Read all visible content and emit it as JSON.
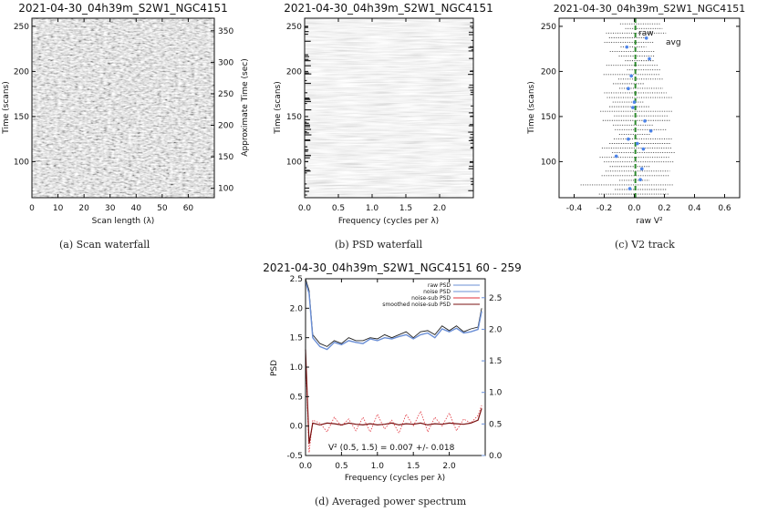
{
  "colors": {
    "axis": "#111111",
    "raw_psd": "#222222",
    "noise_psd": "#6b8fd6",
    "noise_sub": "#e0303a",
    "smoothed": "#7a1010",
    "avg_point": "#4d84e8",
    "v2_line": "#2e8b2e",
    "right_axis": "#6b8fd6"
  },
  "captions": {
    "a": "(a) Scan waterfall",
    "b": "(b) PSD waterfall",
    "c": "(c) V2 track",
    "d": "(d) Averaged power spectrum"
  },
  "chart_data": [
    {
      "id": "a",
      "type": "heatmap",
      "title": "2021-04-30_04h39m_S2W1_NGC4151",
      "xlabel": "Scan length (λ)",
      "ylabel": "Time (scans)",
      "y2label": "Approximate Time (sec)",
      "xlim": [
        0,
        70
      ],
      "ylim": [
        60,
        259
      ],
      "y2lim": [
        85,
        370
      ],
      "xticks": [
        "0",
        "10",
        "20",
        "30",
        "40",
        "50",
        "60"
      ],
      "yticks": [
        "100",
        "150",
        "200",
        "250"
      ],
      "y2ticks": [
        "100",
        "150",
        "200",
        "250",
        "300",
        "350"
      ]
    },
    {
      "id": "b",
      "type": "heatmap",
      "title": "2021-04-30_04h39m_S2W1_NGC4151",
      "xlabel": "Frequency (cycles per λ)",
      "ylabel": "Time (scans)",
      "xlim": [
        0,
        2.5
      ],
      "ylim": [
        60,
        259
      ],
      "xticks": [
        "0.0",
        "0.5",
        "1.0",
        "1.5",
        "2.0"
      ],
      "yticks": [
        "100",
        "150",
        "200",
        "250"
      ]
    },
    {
      "id": "c",
      "type": "scatter",
      "title": "2021-04-30_04h39m_S2W1_NGC4151",
      "xlabel": "raw V²",
      "ylabel": "Time (scans)",
      "xlim": [
        -0.5,
        0.7
      ],
      "ylim": [
        60,
        259
      ],
      "xticks": [
        "-0.4",
        "-0.2",
        "0.0",
        "0.2",
        "0.4",
        "0.6"
      ],
      "yticks": [
        "100",
        "150",
        "200",
        "250"
      ],
      "legend": [
        "raw",
        "avg"
      ],
      "mean_v2": 0.007,
      "avg_points": [
        {
          "x": -0.03,
          "y": 70
        },
        {
          "x": 0.04,
          "y": 80
        },
        {
          "x": 0.05,
          "y": 92
        },
        {
          "x": -0.12,
          "y": 106
        },
        {
          "x": 0.06,
          "y": 114
        },
        {
          "x": 0.02,
          "y": 120
        },
        {
          "x": -0.04,
          "y": 125
        },
        {
          "x": 0.11,
          "y": 134
        },
        {
          "x": 0.07,
          "y": 145
        },
        {
          "x": -0.01,
          "y": 160
        },
        {
          "x": 0.0,
          "y": 166
        },
        {
          "x": -0.04,
          "y": 181
        },
        {
          "x": -0.02,
          "y": 195
        },
        {
          "x": 0.1,
          "y": 214
        },
        {
          "x": -0.05,
          "y": 227
        },
        {
          "x": 0.08,
          "y": 237
        }
      ]
    },
    {
      "id": "d",
      "type": "line",
      "title": "2021-04-30_04h39m_S2W1_NGC4151     60  -  259",
      "xlabel": "Frequency (cycles per λ)",
      "ylabel": "PSD",
      "xlim": [
        0,
        2.5
      ],
      "ylim": [
        -0.5,
        2.5
      ],
      "y2lim": [
        0,
        2.8
      ],
      "xticks": [
        "0.0",
        "0.5",
        "1.0",
        "1.5",
        "2.0"
      ],
      "yticks": [
        "-0.5",
        "0.0",
        "0.5",
        "1.0",
        "1.5",
        "2.0",
        "2.5"
      ],
      "y2ticks": [
        "0.0",
        "0.5",
        "1.0",
        "1.5",
        "2.0",
        "2.5"
      ],
      "legend": [
        "raw PSD",
        "noise PSD",
        "noise-sub PSD",
        "smoothed noise-sub PSD"
      ],
      "annotation": "V² (0.5, 1.5) =  0.007 +/- 0.018",
      "series": [
        {
          "name": "raw PSD",
          "x": [
            0.0,
            0.05,
            0.1,
            0.2,
            0.3,
            0.4,
            0.5,
            0.6,
            0.7,
            0.8,
            0.9,
            1.0,
            1.1,
            1.2,
            1.3,
            1.4,
            1.5,
            1.6,
            1.7,
            1.8,
            1.9,
            2.0,
            2.1,
            2.2,
            2.3,
            2.4,
            2.45
          ],
          "values": [
            2.5,
            2.3,
            1.55,
            1.4,
            1.35,
            1.45,
            1.4,
            1.5,
            1.45,
            1.45,
            1.5,
            1.48,
            1.55,
            1.5,
            1.55,
            1.6,
            1.5,
            1.6,
            1.62,
            1.55,
            1.7,
            1.62,
            1.7,
            1.6,
            1.65,
            1.68,
            2.0
          ]
        },
        {
          "name": "noise PSD",
          "x": [
            0.0,
            0.05,
            0.1,
            0.2,
            0.3,
            0.4,
            0.5,
            0.6,
            0.7,
            0.8,
            0.9,
            1.0,
            1.1,
            1.2,
            1.3,
            1.4,
            1.5,
            1.6,
            1.7,
            1.8,
            1.9,
            2.0,
            2.1,
            2.2,
            2.3,
            2.4,
            2.45
          ],
          "values": [
            2.45,
            2.25,
            1.5,
            1.35,
            1.3,
            1.42,
            1.38,
            1.45,
            1.42,
            1.4,
            1.48,
            1.45,
            1.5,
            1.48,
            1.52,
            1.55,
            1.48,
            1.55,
            1.58,
            1.5,
            1.65,
            1.6,
            1.66,
            1.58,
            1.6,
            1.64,
            1.95
          ]
        },
        {
          "name": "noise-sub PSD",
          "x": [
            0.0,
            0.05,
            0.1,
            0.2,
            0.3,
            0.4,
            0.5,
            0.6,
            0.7,
            0.8,
            0.9,
            1.0,
            1.1,
            1.2,
            1.3,
            1.4,
            1.5,
            1.6,
            1.7,
            1.8,
            1.9,
            2.0,
            2.1,
            2.2,
            2.3,
            2.4,
            2.45
          ],
          "values": [
            1.2,
            -0.45,
            0.1,
            0.05,
            -0.1,
            0.15,
            0.0,
            0.12,
            -0.08,
            0.15,
            -0.1,
            0.2,
            -0.05,
            0.1,
            -0.12,
            0.2,
            0.0,
            0.25,
            -0.1,
            0.15,
            0.0,
            0.22,
            -0.08,
            0.12,
            0.05,
            0.18,
            0.35
          ]
        },
        {
          "name": "smoothed noise-sub PSD",
          "x": [
            0.0,
            0.05,
            0.1,
            0.2,
            0.3,
            0.4,
            0.5,
            0.6,
            0.7,
            0.8,
            0.9,
            1.0,
            1.1,
            1.2,
            1.3,
            1.4,
            1.5,
            1.6,
            1.7,
            1.8,
            1.9,
            2.0,
            2.1,
            2.2,
            2.3,
            2.4,
            2.45
          ],
          "values": [
            1.3,
            -0.3,
            0.05,
            0.02,
            0.05,
            0.04,
            0.02,
            0.05,
            0.03,
            0.02,
            0.04,
            0.02,
            0.03,
            0.05,
            0.02,
            0.04,
            0.03,
            0.05,
            0.02,
            0.04,
            0.03,
            0.05,
            0.04,
            0.03,
            0.05,
            0.1,
            0.3
          ]
        }
      ]
    }
  ]
}
